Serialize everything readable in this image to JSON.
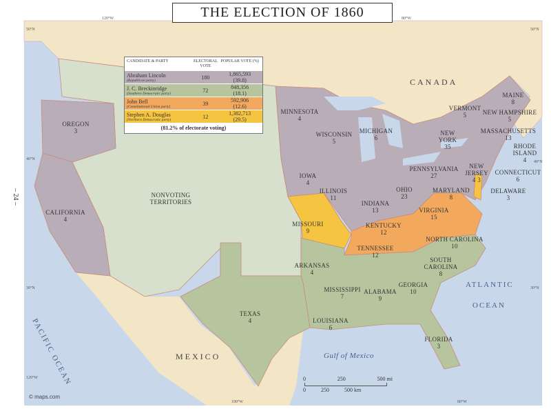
{
  "title": "THE ELECTION OF 1860",
  "colors": {
    "lincoln": "#b9adb8",
    "breckinridge": "#b7c59f",
    "bell": "#f2a95e",
    "douglas": "#f5c441",
    "nonvoting": "#d6e0cd",
    "ocean": "#c9d7ea",
    "foreign_land": "#f3e6c7"
  },
  "legend": {
    "headers": [
      "CANDIDATE & PARTY",
      "ELECTORAL VOTE",
      "POPULAR VOTE (%)"
    ],
    "rows": [
      {
        "candidate": "Abraham Lincoln",
        "party": "(Republican party)",
        "electoral": "180",
        "popular": "1,865,593",
        "pct": "(39.8)"
      },
      {
        "candidate": "J. C. Breckinridge",
        "party": "(Southern Democratic party)",
        "electoral": "72",
        "popular": "848,356",
        "pct": "(18.1)"
      },
      {
        "candidate": "John Bell",
        "party": "(Constitutional Union party)",
        "electoral": "39",
        "popular": "592,906",
        "pct": "(12.6)"
      },
      {
        "candidate": "Stephen A. Douglas",
        "party": "(Northern Democratic party)",
        "electoral": "12",
        "popular": "1,382,713",
        "pct": "(29.5)"
      }
    ],
    "footer": "(81.2% of electorate voting)"
  },
  "states": [
    {
      "name": "Oregon",
      "votes": "3"
    },
    {
      "name": "California",
      "votes": "4"
    },
    {
      "name": "Minnesota",
      "votes": "4"
    },
    {
      "name": "Wisconsin",
      "votes": "5"
    },
    {
      "name": "Michigan",
      "votes": "6"
    },
    {
      "name": "Iowa",
      "votes": "4"
    },
    {
      "name": "Illinois",
      "votes": "11"
    },
    {
      "name": "Indiana",
      "votes": "13"
    },
    {
      "name": "Ohio",
      "votes": "23"
    },
    {
      "name": "Pennsylvania",
      "votes": "27"
    },
    {
      "name": "New York",
      "votes": "35"
    },
    {
      "name": "Maine",
      "votes": "8"
    },
    {
      "name": "Vermont",
      "votes": "5"
    },
    {
      "name": "New Hampshire",
      "votes": "5"
    },
    {
      "name": "Massachusetts",
      "votes": "13"
    },
    {
      "name": "Rhode Island",
      "votes": "4"
    },
    {
      "name": "Connecticut",
      "votes": "6"
    },
    {
      "name": "New Jersey",
      "votes": "4 3"
    },
    {
      "name": "Delaware",
      "votes": "3"
    },
    {
      "name": "Maryland",
      "votes": "8"
    },
    {
      "name": "Missouri",
      "votes": "9"
    },
    {
      "name": "Kentucky",
      "votes": "12"
    },
    {
      "name": "Virginia",
      "votes": "15"
    },
    {
      "name": "Tennessee",
      "votes": "12"
    },
    {
      "name": "North Carolina",
      "votes": "10"
    },
    {
      "name": "South Carolina",
      "votes": "8"
    },
    {
      "name": "Georgia",
      "votes": "10"
    },
    {
      "name": "Alabama",
      "votes": "9"
    },
    {
      "name": "Mississippi",
      "votes": "7"
    },
    {
      "name": "Louisiana",
      "votes": "6"
    },
    {
      "name": "Arkansas",
      "votes": "4"
    },
    {
      "name": "Texas",
      "votes": "4"
    },
    {
      "name": "Florida",
      "votes": "3"
    }
  ],
  "territories": "NONVOTING TERRITORIES",
  "water": {
    "pacific": "PACIFIC OCEAN",
    "atlantic": "ATLANTIC",
    "ocean": "OCEAN",
    "gulf": "Gulf of Mexico"
  },
  "countries": {
    "canada": "CANADA",
    "mexico": "MEXICO"
  },
  "coords": [
    "120°W",
    "80°W",
    "50°N",
    "40°N",
    "30°N",
    "20°N",
    "100°W",
    "40°N",
    "30°N",
    "120°W",
    "80°W"
  ],
  "scale": {
    "mi": [
      "0",
      "250",
      "500 mi"
    ],
    "km": [
      "0",
      "250",
      "500 km"
    ]
  },
  "page_number": "– 24 –",
  "copyright": "© maps.com"
}
